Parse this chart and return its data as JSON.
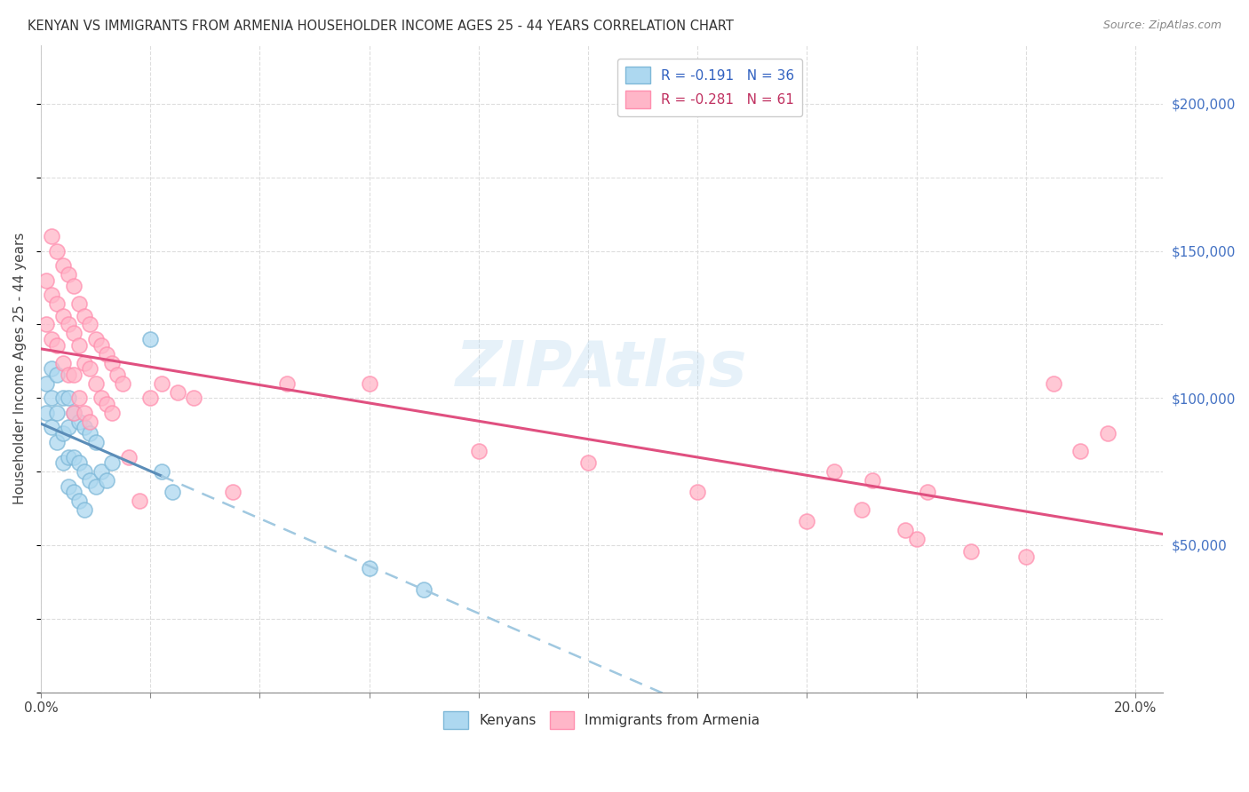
{
  "title": "KENYAN VS IMMIGRANTS FROM ARMENIA HOUSEHOLDER INCOME AGES 25 - 44 YEARS CORRELATION CHART",
  "source": "Source: ZipAtlas.com",
  "ylabel": "Householder Income Ages 25 - 44 years",
  "xlim": [
    0.0,
    0.205
  ],
  "ylim": [
    0,
    220000
  ],
  "x_ticks": [
    0.0,
    0.02,
    0.04,
    0.06,
    0.08,
    0.1,
    0.12,
    0.14,
    0.16,
    0.18,
    0.2
  ],
  "y_ticks_right": [
    0,
    50000,
    100000,
    150000,
    200000
  ],
  "legend1_label": "R = -0.191   N = 36",
  "legend2_label": "R = -0.281   N = 61",
  "legend_bottom1": "Kenyans",
  "legend_bottom2": "Immigrants from Armenia",
  "color_blue": "#ADD8F0",
  "color_pink": "#FFB6C8",
  "color_blue_edge": "#7EB8D8",
  "color_pink_edge": "#FF8FAF",
  "color_blue_line": "#5B8DB8",
  "color_pink_line": "#E05080",
  "color_blue_dash": "#A0C8E0",
  "watermark": "ZIPAtlas",
  "kenyans_x": [
    0.001,
    0.001,
    0.002,
    0.002,
    0.002,
    0.003,
    0.003,
    0.003,
    0.004,
    0.004,
    0.004,
    0.005,
    0.005,
    0.005,
    0.005,
    0.006,
    0.006,
    0.006,
    0.007,
    0.007,
    0.007,
    0.008,
    0.008,
    0.008,
    0.009,
    0.009,
    0.01,
    0.01,
    0.011,
    0.012,
    0.013,
    0.02,
    0.022,
    0.024,
    0.06,
    0.07
  ],
  "kenyans_y": [
    105000,
    95000,
    110000,
    100000,
    90000,
    108000,
    95000,
    85000,
    100000,
    88000,
    78000,
    100000,
    90000,
    80000,
    70000,
    95000,
    80000,
    68000,
    92000,
    78000,
    65000,
    90000,
    75000,
    62000,
    88000,
    72000,
    85000,
    70000,
    75000,
    72000,
    78000,
    120000,
    75000,
    68000,
    42000,
    35000
  ],
  "armenia_x": [
    0.001,
    0.001,
    0.002,
    0.002,
    0.002,
    0.003,
    0.003,
    0.003,
    0.004,
    0.004,
    0.004,
    0.005,
    0.005,
    0.005,
    0.006,
    0.006,
    0.006,
    0.006,
    0.007,
    0.007,
    0.007,
    0.008,
    0.008,
    0.008,
    0.009,
    0.009,
    0.009,
    0.01,
    0.01,
    0.011,
    0.011,
    0.012,
    0.012,
    0.013,
    0.013,
    0.014,
    0.015,
    0.016,
    0.018,
    0.02,
    0.022,
    0.025,
    0.028,
    0.035,
    0.045,
    0.06,
    0.08,
    0.1,
    0.12,
    0.14,
    0.16,
    0.17,
    0.18,
    0.185,
    0.19,
    0.15,
    0.162,
    0.158,
    0.152,
    0.145,
    0.195
  ],
  "armenia_y": [
    140000,
    125000,
    155000,
    135000,
    120000,
    150000,
    132000,
    118000,
    145000,
    128000,
    112000,
    142000,
    125000,
    108000,
    138000,
    122000,
    108000,
    95000,
    132000,
    118000,
    100000,
    128000,
    112000,
    95000,
    125000,
    110000,
    92000,
    120000,
    105000,
    118000,
    100000,
    115000,
    98000,
    112000,
    95000,
    108000,
    105000,
    80000,
    65000,
    100000,
    105000,
    102000,
    100000,
    68000,
    105000,
    105000,
    82000,
    78000,
    68000,
    58000,
    52000,
    48000,
    46000,
    105000,
    82000,
    62000,
    68000,
    55000,
    72000,
    75000,
    88000
  ]
}
